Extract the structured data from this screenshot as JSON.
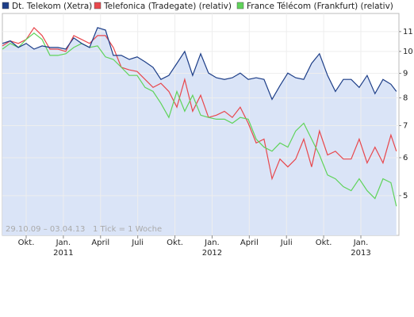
{
  "chart_data": {
    "type": "line",
    "log_scale": true,
    "grid": true,
    "annotations": [
      "29.10.09 – 03.04.13",
      "1 Tick = 1 Woche"
    ],
    "x": [
      2010.59,
      2010.643,
      2010.697,
      2010.75,
      2010.803,
      2010.857,
      2010.91,
      2010.963,
      2011.016,
      2011.07,
      2011.123,
      2011.176,
      2011.23,
      2011.283,
      2011.336,
      2011.39,
      2011.443,
      2011.496,
      2011.549,
      2011.603,
      2011.656,
      2011.709,
      2011.763,
      2011.816,
      2011.869,
      2011.923,
      2011.976,
      2012.029,
      2012.083,
      2012.136,
      2012.189,
      2012.243,
      2012.296,
      2012.349,
      2012.403,
      2012.456,
      2012.509,
      2012.562,
      2012.616,
      2012.669,
      2012.722,
      2012.776,
      2012.829,
      2012.882,
      2012.935,
      2012.989,
      2013.042,
      2013.095,
      2013.149,
      2013.202,
      2013.239
    ],
    "series": [
      {
        "name": "Dt. Telekom (Xetra)",
        "color": "#1c3d87",
        "fill": "#dae4f7",
        "values": [
          10.39,
          10.52,
          10.19,
          10.39,
          10.11,
          10.27,
          10.19,
          10.19,
          10.11,
          10.67,
          10.39,
          10.19,
          11.21,
          11.08,
          9.81,
          9.81,
          9.62,
          9.74,
          9.51,
          9.26,
          8.74,
          8.91,
          9.44,
          10.0,
          8.91,
          9.89,
          9.01,
          8.81,
          8.74,
          8.81,
          9.01,
          8.74,
          8.81,
          8.74,
          7.94,
          8.48,
          9.01,
          8.81,
          8.74,
          9.44,
          9.89,
          8.91,
          8.25,
          8.74,
          8.74,
          8.41,
          8.91,
          8.16,
          8.74,
          8.54,
          8.25
        ]
      },
      {
        "name": "Telefonica (Tradegate) (relativ)",
        "color": "#e8474c",
        "values": [
          10.27,
          10.52,
          10.39,
          10.59,
          11.21,
          10.79,
          10.11,
          10.11,
          10.0,
          10.79,
          10.59,
          10.39,
          10.79,
          10.79,
          10.19,
          9.26,
          9.15,
          9.08,
          8.74,
          8.41,
          8.58,
          8.25,
          7.65,
          8.74,
          7.5,
          8.1,
          7.28,
          7.36,
          7.5,
          7.28,
          7.65,
          7.08,
          6.44,
          6.56,
          5.42,
          5.96,
          5.74,
          5.96,
          6.56,
          5.74,
          6.82,
          6.08,
          6.19,
          5.96,
          5.96,
          6.56,
          5.85,
          6.31,
          5.85,
          6.69,
          6.19
        ]
      },
      {
        "name": "France Télécom (Frankfurt) (relativ)",
        "color": "#5fd35a",
        "values": [
          10.11,
          10.39,
          10.19,
          10.59,
          10.92,
          10.59,
          9.81,
          9.81,
          9.89,
          10.19,
          10.39,
          10.19,
          10.27,
          9.74,
          9.62,
          9.26,
          8.91,
          8.91,
          8.41,
          8.25,
          7.79,
          7.28,
          8.25,
          7.5,
          8.1,
          7.36,
          7.28,
          7.22,
          7.22,
          7.08,
          7.28,
          7.22,
          6.56,
          6.31,
          6.19,
          6.44,
          6.31,
          6.82,
          7.08,
          6.56,
          6.08,
          5.52,
          5.42,
          5.22,
          5.12,
          5.42,
          5.12,
          4.93,
          5.42,
          5.32,
          4.75
        ]
      }
    ],
    "xlim": [
      2010.59,
      2013.256
    ],
    "xticks": [
      {
        "value": 2010.75,
        "label": "Okt."
      },
      {
        "value": 2011.0,
        "label": "Jan."
      },
      {
        "value": 2011.25,
        "label": "April"
      },
      {
        "value": 2011.5,
        "label": "Juli"
      },
      {
        "value": 2011.75,
        "label": "Okt."
      },
      {
        "value": 2012.0,
        "label": "Jan."
      },
      {
        "value": 2012.25,
        "label": "April"
      },
      {
        "value": 2012.5,
        "label": "Juli"
      },
      {
        "value": 2012.75,
        "label": "Okt."
      },
      {
        "value": 2013.0,
        "label": "Jan."
      }
    ],
    "xticks_years": [
      2011,
      2012,
      2013
    ],
    "ylim": [
      4.13,
      12.0
    ],
    "yticks": [
      5,
      6,
      7,
      8,
      9,
      10,
      11
    ]
  }
}
